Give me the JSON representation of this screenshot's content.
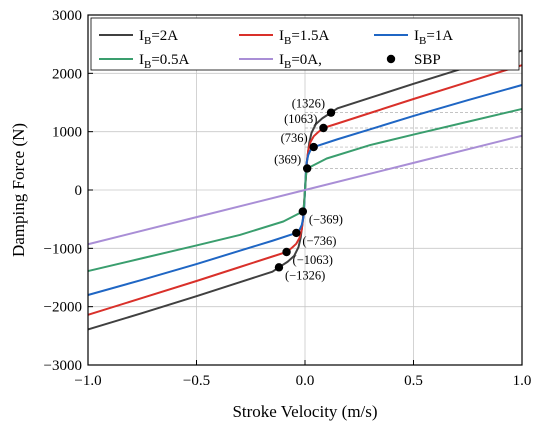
{
  "chart_data": {
    "type": "line",
    "title": "",
    "xlabel": "Stroke Velocity (m/s)",
    "ylabel": "Damping Force (N)",
    "xlim": [
      -1.0,
      1.0
    ],
    "ylim": [
      -3000,
      3000
    ],
    "xticks": [
      -1.0,
      -0.5,
      0.0,
      0.5,
      1.0
    ],
    "xtick_labels": [
      "−1.0",
      "−0.5",
      "0.0",
      "0.5",
      "1.0"
    ],
    "yticks": [
      -3000,
      -2000,
      -1000,
      0,
      1000,
      2000,
      3000
    ],
    "ytick_labels": [
      "−3000",
      "−2000",
      "−1000",
      "0",
      "1000",
      "2000",
      "3000"
    ],
    "grid": true,
    "legend_position": "top",
    "series": [
      {
        "name": "I_B=2A",
        "label_main": "I",
        "label_sub": "B",
        "label_rest": "=2A",
        "color": "#404040",
        "x": [
          -1.0,
          -0.75,
          -0.5,
          -0.3,
          -0.15,
          -0.12,
          -0.08,
          -0.05,
          -0.03,
          -0.02,
          -0.01,
          0.0,
          0.01,
          0.02,
          0.03,
          0.05,
          0.08,
          0.12,
          0.15,
          0.3,
          0.5,
          0.75,
          1.0
        ],
        "y": [
          -2390,
          -2110,
          -1820,
          -1580,
          -1400,
          -1326,
          -1230,
          -1130,
          -980,
          -820,
          -520,
          0,
          520,
          820,
          980,
          1130,
          1230,
          1326,
          1400,
          1580,
          1820,
          2110,
          2390
        ]
      },
      {
        "name": "I_B=1.5A",
        "label_main": "I",
        "label_sub": "B",
        "label_rest": "=1.5A",
        "color": "#d9302a",
        "x": [
          -1.0,
          -0.75,
          -0.5,
          -0.3,
          -0.15,
          -0.085,
          -0.06,
          -0.04,
          -0.025,
          -0.015,
          -0.007,
          0.0,
          0.007,
          0.015,
          0.025,
          0.04,
          0.06,
          0.085,
          0.15,
          0.3,
          0.5,
          0.75,
          1.0
        ],
        "y": [
          -2140,
          -1850,
          -1560,
          -1320,
          -1140,
          -1063,
          -990,
          -920,
          -820,
          -680,
          -430,
          0,
          430,
          680,
          820,
          920,
          990,
          1063,
          1140,
          1320,
          1560,
          1850,
          2140
        ]
      },
      {
        "name": "I_B=1A",
        "label_main": "I",
        "label_sub": "B",
        "label_rest": "=1A",
        "color": "#1f66c4",
        "x": [
          -1.0,
          -0.75,
          -0.5,
          -0.3,
          -0.15,
          -0.04,
          -0.025,
          -0.015,
          -0.008,
          -0.004,
          0.0,
          0.004,
          0.008,
          0.015,
          0.025,
          0.04,
          0.15,
          0.3,
          0.5,
          0.75,
          1.0
        ],
        "y": [
          -1800,
          -1540,
          -1270,
          -1040,
          -870,
          -736,
          -680,
          -600,
          -480,
          -300,
          0,
          300,
          480,
          600,
          680,
          736,
          870,
          1040,
          1270,
          1540,
          1800
        ]
      },
      {
        "name": "I_B=0.5A",
        "label_main": "I",
        "label_sub": "B",
        "label_rest": "=0.5A",
        "color": "#3a9e6e",
        "x": [
          -1.0,
          -0.75,
          -0.5,
          -0.3,
          -0.1,
          -0.01,
          -0.006,
          -0.003,
          0.0,
          0.003,
          0.006,
          0.01,
          0.1,
          0.3,
          0.5,
          0.75,
          1.0
        ],
        "y": [
          -1390,
          -1170,
          -950,
          -770,
          -540,
          -369,
          -300,
          -190,
          0,
          190,
          300,
          369,
          540,
          770,
          950,
          1170,
          1390
        ]
      },
      {
        "name": "I_B=0A,",
        "label_main": "I",
        "label_sub": "B",
        "label_rest": "=0A,",
        "color": "#a98ed6",
        "x": [
          -1.0,
          -0.5,
          0.0,
          0.5,
          1.0
        ],
        "y": [
          -930,
          -465,
          0,
          465,
          930
        ]
      }
    ],
    "sbp": {
      "name": "SBP",
      "color": "#000000",
      "points": [
        {
          "x": 0.12,
          "y": 1326,
          "label": "(1326)"
        },
        {
          "x": 0.085,
          "y": 1063,
          "label": "(1063)"
        },
        {
          "x": 0.04,
          "y": 736,
          "label": "(736)"
        },
        {
          "x": 0.01,
          "y": 369,
          "label": "(369)"
        },
        {
          "x": -0.01,
          "y": -369,
          "label": "(−369)"
        },
        {
          "x": -0.04,
          "y": -736,
          "label": "(−736)"
        },
        {
          "x": -0.085,
          "y": -1063,
          "label": "(−1063)"
        },
        {
          "x": -0.12,
          "y": -1326,
          "label": "(−1326)"
        }
      ]
    },
    "reference_lines_y": [
      1326,
      1063,
      736,
      369
    ]
  }
}
